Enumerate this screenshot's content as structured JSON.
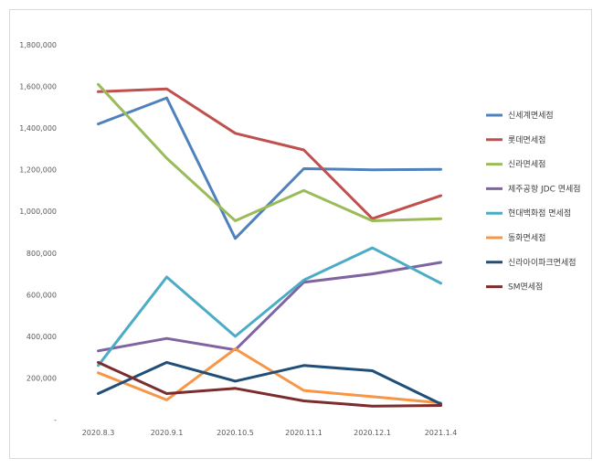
{
  "chart_data": {
    "type": "line",
    "categories": [
      "2020.8.3",
      "2020.9.1",
      "2020.10.5",
      "2020.11.1",
      "2020.12.1",
      "2021.1.4"
    ],
    "ylim": [
      0,
      1800000
    ],
    "yticks": [
      0,
      200000,
      400000,
      600000,
      800000,
      1000000,
      1200000,
      1400000,
      1600000,
      1800000
    ],
    "ytick_labels": [
      "-",
      "200,000",
      "400,000",
      "600,000",
      "800,000",
      "1,000,000",
      "1,200,000",
      "1,400,000",
      "1,600,000",
      "1,800,000"
    ],
    "grid": false,
    "legend_position": "right",
    "series": [
      {
        "name": "신세계면세점",
        "color": "#4f81bd",
        "values": [
          1420000,
          1545000,
          870000,
          1205000,
          1200000,
          1202000
        ]
      },
      {
        "name": "롯데면세점",
        "color": "#c0504d",
        "values": [
          1575000,
          1588000,
          1375000,
          1295000,
          965000,
          1075000
        ]
      },
      {
        "name": "신라면세점",
        "color": "#9bbb59",
        "values": [
          1610000,
          1255000,
          955000,
          1100000,
          955000,
          965000
        ]
      },
      {
        "name": "제주공항 JDC 면세점",
        "color": "#8064a2",
        "values": [
          330000,
          390000,
          335000,
          660000,
          700000,
          755000
        ]
      },
      {
        "name": "현대백화점 면세점",
        "color": "#4bacc6",
        "values": [
          260000,
          685000,
          400000,
          670000,
          825000,
          655000
        ]
      },
      {
        "name": "동화면세점",
        "color": "#f79646",
        "values": [
          225000,
          95000,
          340000,
          140000,
          110000,
          80000
        ]
      },
      {
        "name": "신라아이파크면세점",
        "color": "#1f4e79",
        "values": [
          125000,
          275000,
          185000,
          260000,
          235000,
          75000
        ]
      },
      {
        "name": "SM면세점",
        "color": "#7b2c2c",
        "values": [
          275000,
          125000,
          150000,
          90000,
          65000,
          68000
        ]
      }
    ]
  }
}
